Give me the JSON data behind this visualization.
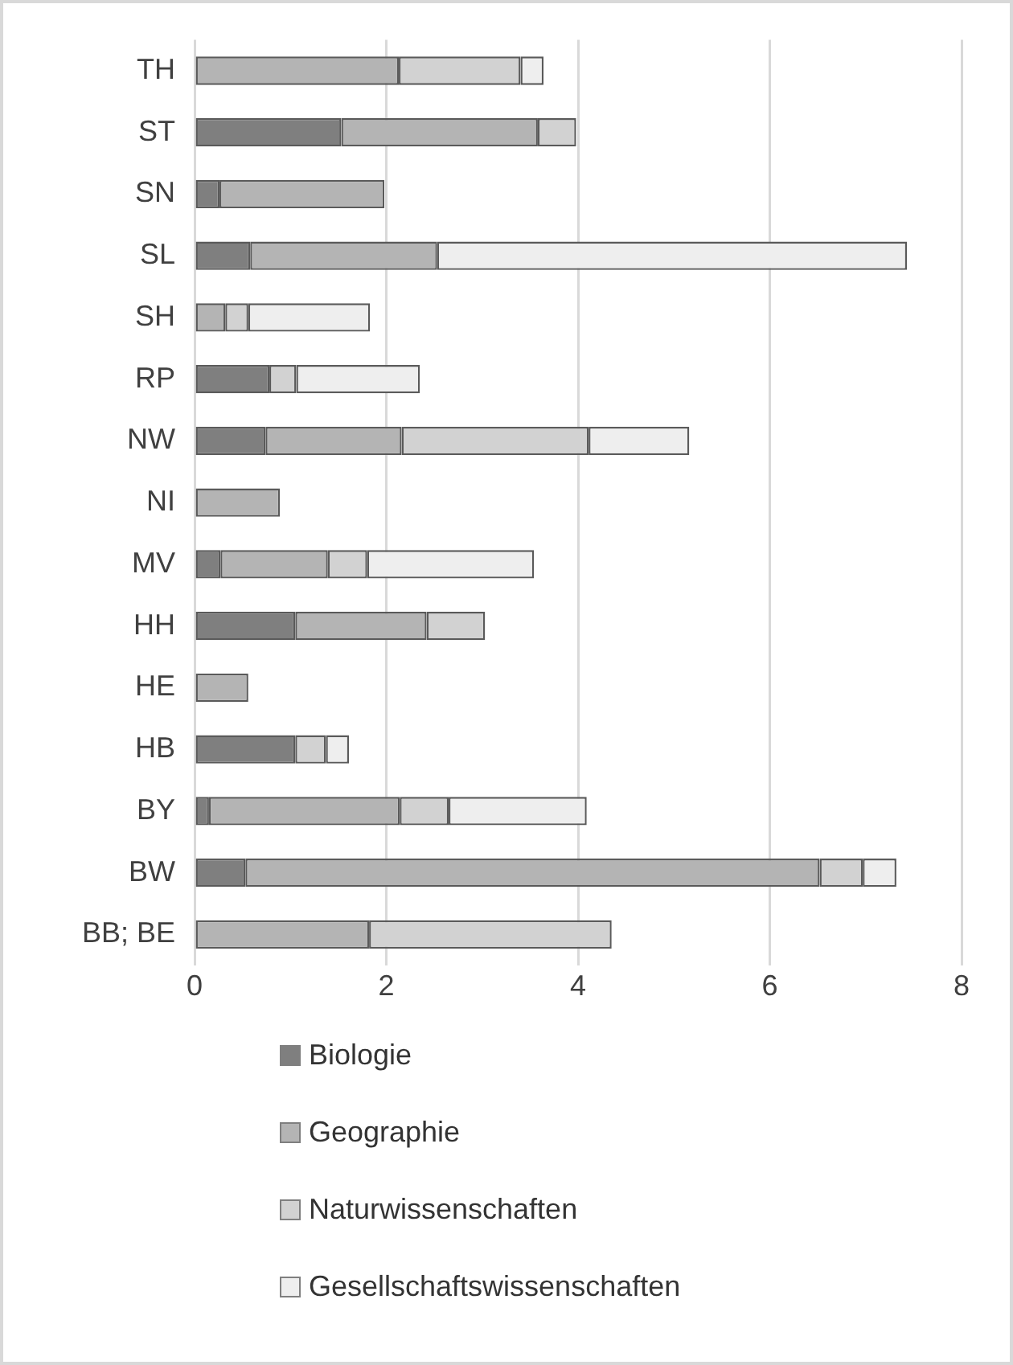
{
  "chart_data": {
    "type": "bar",
    "orientation": "horizontal",
    "stacked": true,
    "categories": [
      "TH",
      "ST",
      "SN",
      "SL",
      "SH",
      "RP",
      "NW",
      "NI",
      "MV",
      "HH",
      "HE",
      "HB",
      "BY",
      "BW",
      "BB; BE"
    ],
    "series": [
      {
        "name": "Biologie",
        "color": "#7f7f7f",
        "values": [
          null,
          1.53,
          0.26,
          0.58,
          null,
          0.78,
          0.74,
          null,
          0.27,
          1.05,
          null,
          1.05,
          0.15,
          0.53,
          null
        ]
      },
      {
        "name": "Geographie",
        "color": "#b4b4b4",
        "values": [
          2.13,
          2.05,
          1.72,
          1.95,
          0.32,
          null,
          1.42,
          0.89,
          1.12,
          1.37,
          0.56,
          null,
          1.99,
          5.99,
          1.82
        ]
      },
      {
        "name": "Naturwissenschaften",
        "color": "#d2d2d2",
        "values": [
          1.27,
          0.4,
          null,
          null,
          0.24,
          0.28,
          1.95,
          null,
          0.41,
          0.61,
          null,
          0.32,
          0.51,
          0.45,
          2.53
        ]
      },
      {
        "name": "Gesellschaftswissenschaften",
        "color": "#eeeeee",
        "values": [
          0.24,
          null,
          null,
          4.9,
          1.27,
          1.29,
          1.05,
          null,
          1.74,
          null,
          null,
          0.24,
          1.44,
          0.35,
          null
        ]
      }
    ],
    "xlim": [
      0,
      8
    ],
    "xticks": [
      0,
      2,
      4,
      6,
      8
    ],
    "grid": "x",
    "legend": "bottom"
  }
}
